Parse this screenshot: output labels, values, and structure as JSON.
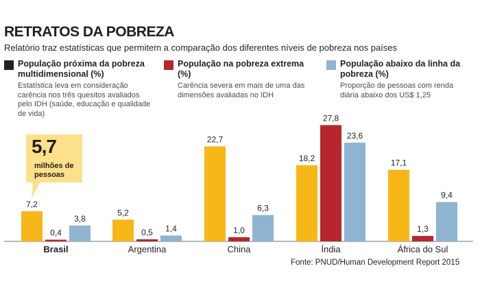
{
  "chart_data": {
    "type": "bar",
    "title": "RETRATOS DA POBREZA",
    "subtitle": "Relatório traz estatísticas que permitem a comparação dos diferentes níveis de pobreza nos países",
    "categories": [
      "Brasil",
      "Argentina",
      "China",
      "Índia",
      "África do Sul"
    ],
    "series": [
      {
        "name": "População próxima da pobreza multidimensional (%)",
        "description": "Estatística leva em consideração carência nos três quesitos avaliados pelo IDH (saúde, educação e qualidade de vida)",
        "color": "#f7b718",
        "values": [
          7.2,
          5.2,
          22.7,
          18.2,
          17.1
        ],
        "labels": [
          "7,2",
          "5,2",
          "22,7",
          "18,2",
          "17,1"
        ]
      },
      {
        "name": "População na pobreza extrema (%)",
        "description": "Carência severa em mais de uma das dimensões avaliadas no IDH",
        "color": "#b5262d",
        "values": [
          0.4,
          0.5,
          1.0,
          27.8,
          1.3
        ],
        "labels": [
          "0,4",
          "0,5",
          "1,0",
          "27,8",
          "1,3"
        ]
      },
      {
        "name": "População abaixo da linha da pobreza (%)",
        "description": "Proporção de pessoas com renda diária abaixo dos US$ 1,25",
        "color": "#8fb4d1",
        "values": [
          3.8,
          1.4,
          6.3,
          23.6,
          9.4
        ],
        "labels": [
          "3,8",
          "1,4",
          "6,3",
          "23,6",
          "9,4"
        ]
      }
    ],
    "legend_swatch_colors": [
      "#231f20",
      "#b5262d",
      "#8fb4d1"
    ],
    "ylim": [
      0,
      28
    ],
    "annotation": {
      "value": "5,7",
      "text": "milhões de pessoas",
      "color": "#fde08a"
    },
    "source": "Fonte: PNUD/Human Development Report 2015"
  }
}
